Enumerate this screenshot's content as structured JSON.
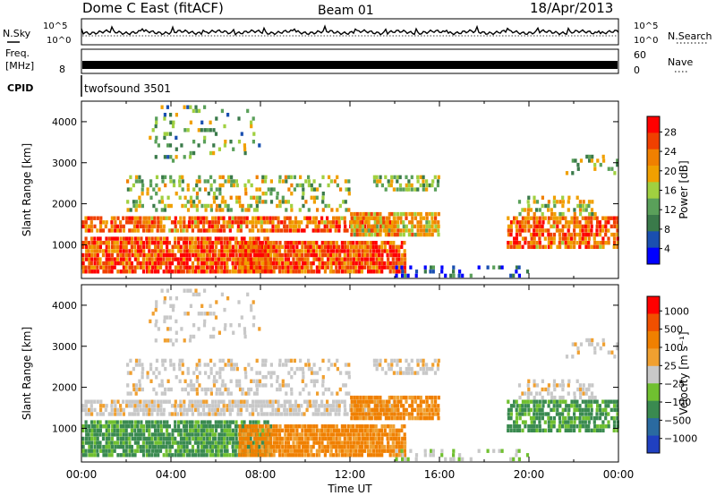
{
  "header": {
    "station": "Dome C East (fitACF)",
    "beam": "Beam 01",
    "date": "18/Apr/2013"
  },
  "top_strips": {
    "nsky_label": "N.Sky",
    "nsearch_label": "N.Search",
    "freq_label_1": "Freq.",
    "freq_label_2": "[MHz]",
    "nave_label": "Nave",
    "cpid_label": "CPID",
    "cpid_value": "twofsound 3501",
    "noise_ticks": [
      "10^5",
      "10^0"
    ],
    "freq_ticks": [
      "8"
    ],
    "nave_ticks": [
      "60",
      "0"
    ]
  },
  "colors": {
    "power_scale": [
      "#0000ff",
      "#1a4fb0",
      "#3a7a4a",
      "#5aa05a",
      "#a0d040",
      "#f0a000",
      "#f08000",
      "#f04000",
      "#ff0000"
    ],
    "velocity_scale": [
      "#2040c0",
      "#2a6aa0",
      "#3a8a50",
      "#70c030",
      "#c8c8c8",
      "#f0a030",
      "#f08000",
      "#f05000",
      "#ff0000"
    ]
  },
  "chart_data": [
    {
      "type": "heatmap",
      "panel": "power",
      "ylabel": "Slant Range [km]",
      "yticks": [
        1000,
        2000,
        3000,
        4000
      ],
      "ylim": [
        180,
        4500
      ],
      "xlim": [
        0,
        24
      ],
      "colorbar": {
        "label": "Power [dB]",
        "ticks": [
          "28",
          "24",
          "20",
          "16",
          "12",
          "8",
          "4"
        ],
        "range": [
          0,
          30
        ]
      }
    },
    {
      "type": "heatmap",
      "panel": "velocity",
      "ylabel": "Slant Range [km]",
      "yticks": [
        1000,
        2000,
        3000,
        4000
      ],
      "ylim": [
        180,
        4500
      ],
      "xlim": [
        0,
        24
      ],
      "colorbar": {
        "label": "Velocity [m s⁻¹]",
        "ticks": [
          "1000",
          "500",
          "100",
          "25",
          "−25",
          "−100",
          "−500",
          "−1000"
        ]
      }
    }
  ],
  "xaxis": {
    "label": "Time UT",
    "ticks": [
      "00:00",
      "04:00",
      "08:00",
      "12:00",
      "16:00",
      "20:00",
      "00:00"
    ]
  }
}
